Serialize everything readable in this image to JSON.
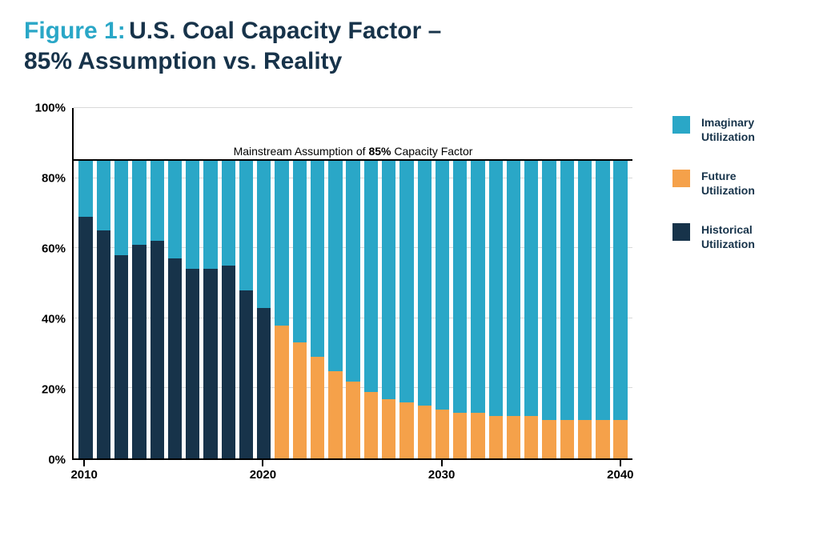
{
  "title": {
    "label": "Figure 1:",
    "label_color": "#2aa7c7",
    "line1": "U.S. Coal Capacity Factor –",
    "line2": "85% Assumption vs. Reality",
    "title_color": "#17334a",
    "fontsize": 30
  },
  "chart": {
    "type": "stacked-bar",
    "ylim": [
      0,
      100
    ],
    "ytick_step": 20,
    "y_unit": "%",
    "yticks": [
      0,
      20,
      40,
      60,
      80,
      100
    ],
    "xlim": [
      2010,
      2040
    ],
    "xticks": [
      2010,
      2020,
      2030,
      2040
    ],
    "background_color": "#ffffff",
    "grid_color": "#d9d9d9",
    "axis_color": "#000000",
    "bar_total": 85,
    "reference": {
      "value": 85,
      "label_prefix": "Mainstream Assumption of ",
      "label_bold": "85%",
      "label_suffix": " Capacity Factor",
      "line_color": "#000000"
    },
    "colors": {
      "imaginary": "#2aa7c7",
      "future": "#f5a14a",
      "historical": "#17334a"
    },
    "years": [
      2010,
      2011,
      2012,
      2013,
      2014,
      2015,
      2016,
      2017,
      2018,
      2019,
      2020,
      2021,
      2022,
      2023,
      2024,
      2025,
      2026,
      2027,
      2028,
      2029,
      2030,
      2031,
      2032,
      2033,
      2034,
      2035,
      2036,
      2037,
      2038,
      2039,
      2040
    ],
    "historical": [
      69,
      65,
      58,
      61,
      62,
      57,
      54,
      54,
      55,
      48,
      43,
      null,
      null,
      null,
      null,
      null,
      null,
      null,
      null,
      null,
      null,
      null,
      null,
      null,
      null,
      null,
      null,
      null,
      null,
      null,
      null
    ],
    "future": [
      null,
      null,
      null,
      null,
      null,
      null,
      null,
      null,
      null,
      null,
      null,
      38,
      33,
      29,
      25,
      22,
      19,
      17,
      16,
      15,
      14,
      13,
      13,
      12,
      12,
      12,
      11,
      11,
      11,
      11,
      11
    ],
    "label_fontsize": 15
  },
  "legend": {
    "items": [
      {
        "label": "Imaginary Utilization",
        "color_key": "imaginary"
      },
      {
        "label": "Future Utilization",
        "color_key": "future"
      },
      {
        "label": "Historical Utilization",
        "color_key": "historical"
      }
    ],
    "fontsize": 14,
    "text_color": "#17334a"
  }
}
